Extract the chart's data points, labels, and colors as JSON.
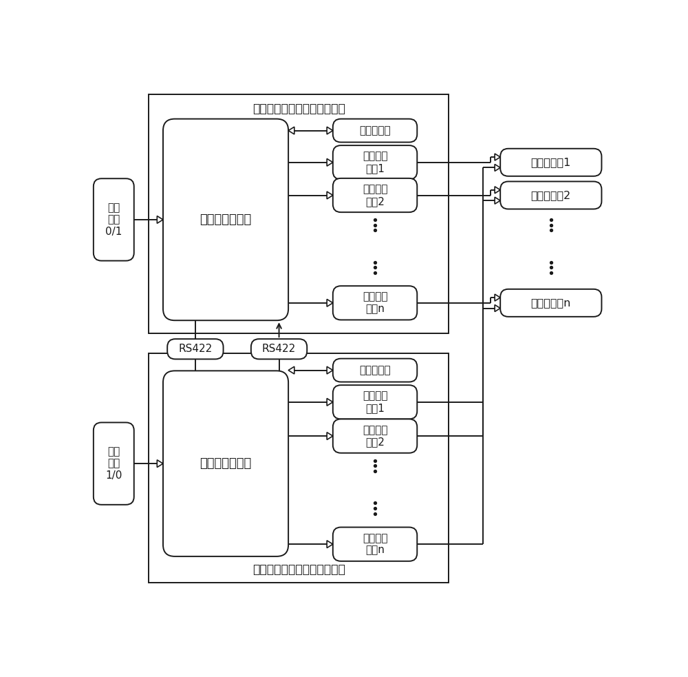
{
  "bg_color": "#ffffff",
  "line_color": "#1a1a1a",
  "title1": "第一位置检测与收放控制设备",
  "title2": "第二位置检测与收放控制设备",
  "cpu_label": "中央处理机组合",
  "input1_label": "位置\n编码\n0/1",
  "input2_label": "位置\n编码\n1/0",
  "data_store_label": "数据存储器",
  "out1_label": "输出驱动\n电路1",
  "out2_label": "输出驱动\n电路2",
  "outn_label": "输出驱动\n电路n",
  "valve1_label": "液压电磁阀1",
  "valve2_label": "液压电磁阀2",
  "valven_label": "液压电磁阀n",
  "rs422_label": "RS422",
  "figsize": [
    10.0,
    9.83
  ],
  "dpi": 100,
  "xlim": [
    0,
    10
  ],
  "ylim": [
    0,
    9.83
  ]
}
